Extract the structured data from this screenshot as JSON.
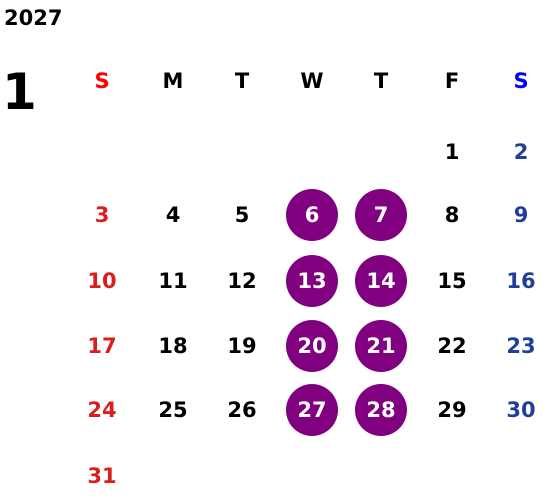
{
  "calendar": {
    "year": "2027",
    "month": "1",
    "weekdays": [
      "S",
      "M",
      "T",
      "W",
      "T",
      "F",
      "S"
    ],
    "weeks": [
      [
        "",
        "",
        "",
        "",
        "",
        "1",
        "2"
      ],
      [
        "3",
        "4",
        "5",
        "6",
        "7",
        "8",
        "9"
      ],
      [
        "10",
        "11",
        "12",
        "13",
        "14",
        "15",
        "16"
      ],
      [
        "17",
        "18",
        "19",
        "20",
        "21",
        "22",
        "23"
      ],
      [
        "24",
        "25",
        "26",
        "27",
        "28",
        "29",
        "30"
      ],
      [
        "31",
        "",
        "",
        "",
        "",
        "",
        ""
      ]
    ],
    "highlighted_days": [
      "6",
      "7",
      "13",
      "14",
      "20",
      "21",
      "27",
      "28"
    ],
    "colors": {
      "sunday_header": "#ff0000",
      "saturday_header": "#0000ff",
      "sunday_date": "#d91e1e",
      "saturday_date": "#1f3f9a",
      "weekday": "#000000",
      "highlight": "#800080",
      "highlight_text": "#ffffff"
    }
  }
}
